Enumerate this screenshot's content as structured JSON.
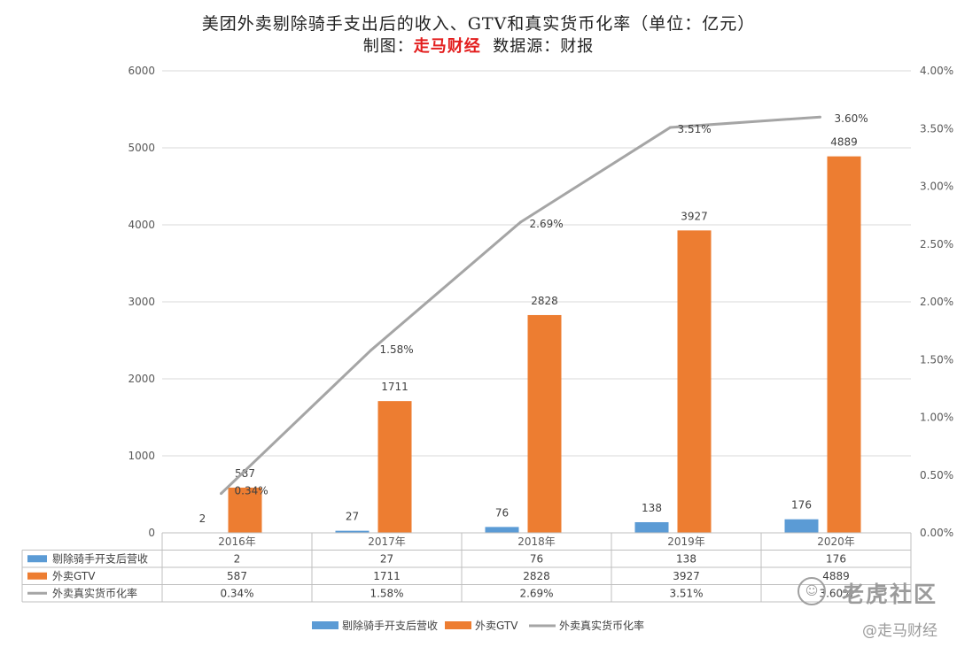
{
  "title": {
    "line1": "美团外卖剔除骑手支出后的收入、GTV和真实货币化率（单位：亿元）",
    "line2_prefix": "制图：",
    "line2_brand": "走马财经",
    "line2_suffix": "  数据源：财报"
  },
  "watermarks": {
    "community": "老虎社区",
    "brand": "@走马财经"
  },
  "colors": {
    "revenue": "#5b9bd5",
    "gtv": "#ed7d31",
    "rate": "#a5a5a5",
    "grid": "#d9d9d9",
    "axis_text": "#595959",
    "brand_red": "#e31e1e"
  },
  "chart_data": {
    "type": "bar",
    "categories": [
      "2016年",
      "2017年",
      "2018年",
      "2019年",
      "2020年"
    ],
    "series": [
      {
        "name": "剔除骑手开支后营收",
        "kind": "bar",
        "axis": "left",
        "values": [
          2,
          27,
          76,
          138,
          176
        ],
        "labels": [
          "2",
          "27",
          "76",
          "138",
          "176"
        ]
      },
      {
        "name": "外卖GTV",
        "kind": "bar",
        "axis": "left",
        "values": [
          587,
          1711,
          2828,
          3927,
          4889
        ],
        "labels": [
          "587",
          "1711",
          "2828",
          "3927",
          "4889"
        ]
      },
      {
        "name": "外卖真实货币化率",
        "kind": "line",
        "axis": "right",
        "values": [
          0.34,
          1.58,
          2.69,
          3.51,
          3.6
        ],
        "labels": [
          "0.34%",
          "1.58%",
          "2.69%",
          "3.51%",
          "3.60%"
        ]
      }
    ],
    "y_left": {
      "range": [
        0,
        6000
      ],
      "ticks": [
        "0",
        "1000",
        "2000",
        "3000",
        "4000",
        "5000",
        "6000"
      ]
    },
    "y_right": {
      "range": [
        0,
        4
      ],
      "ticks": [
        "0.00%",
        "0.50%",
        "1.00%",
        "1.50%",
        "2.00%",
        "2.50%",
        "3.00%",
        "3.50%",
        "4.00%"
      ]
    },
    "grid": true,
    "data_table": true,
    "legend": [
      "剔除骑手开支后营收",
      "外卖GTV",
      "外卖真实货币化率"
    ],
    "legend_position": "bottom"
  }
}
